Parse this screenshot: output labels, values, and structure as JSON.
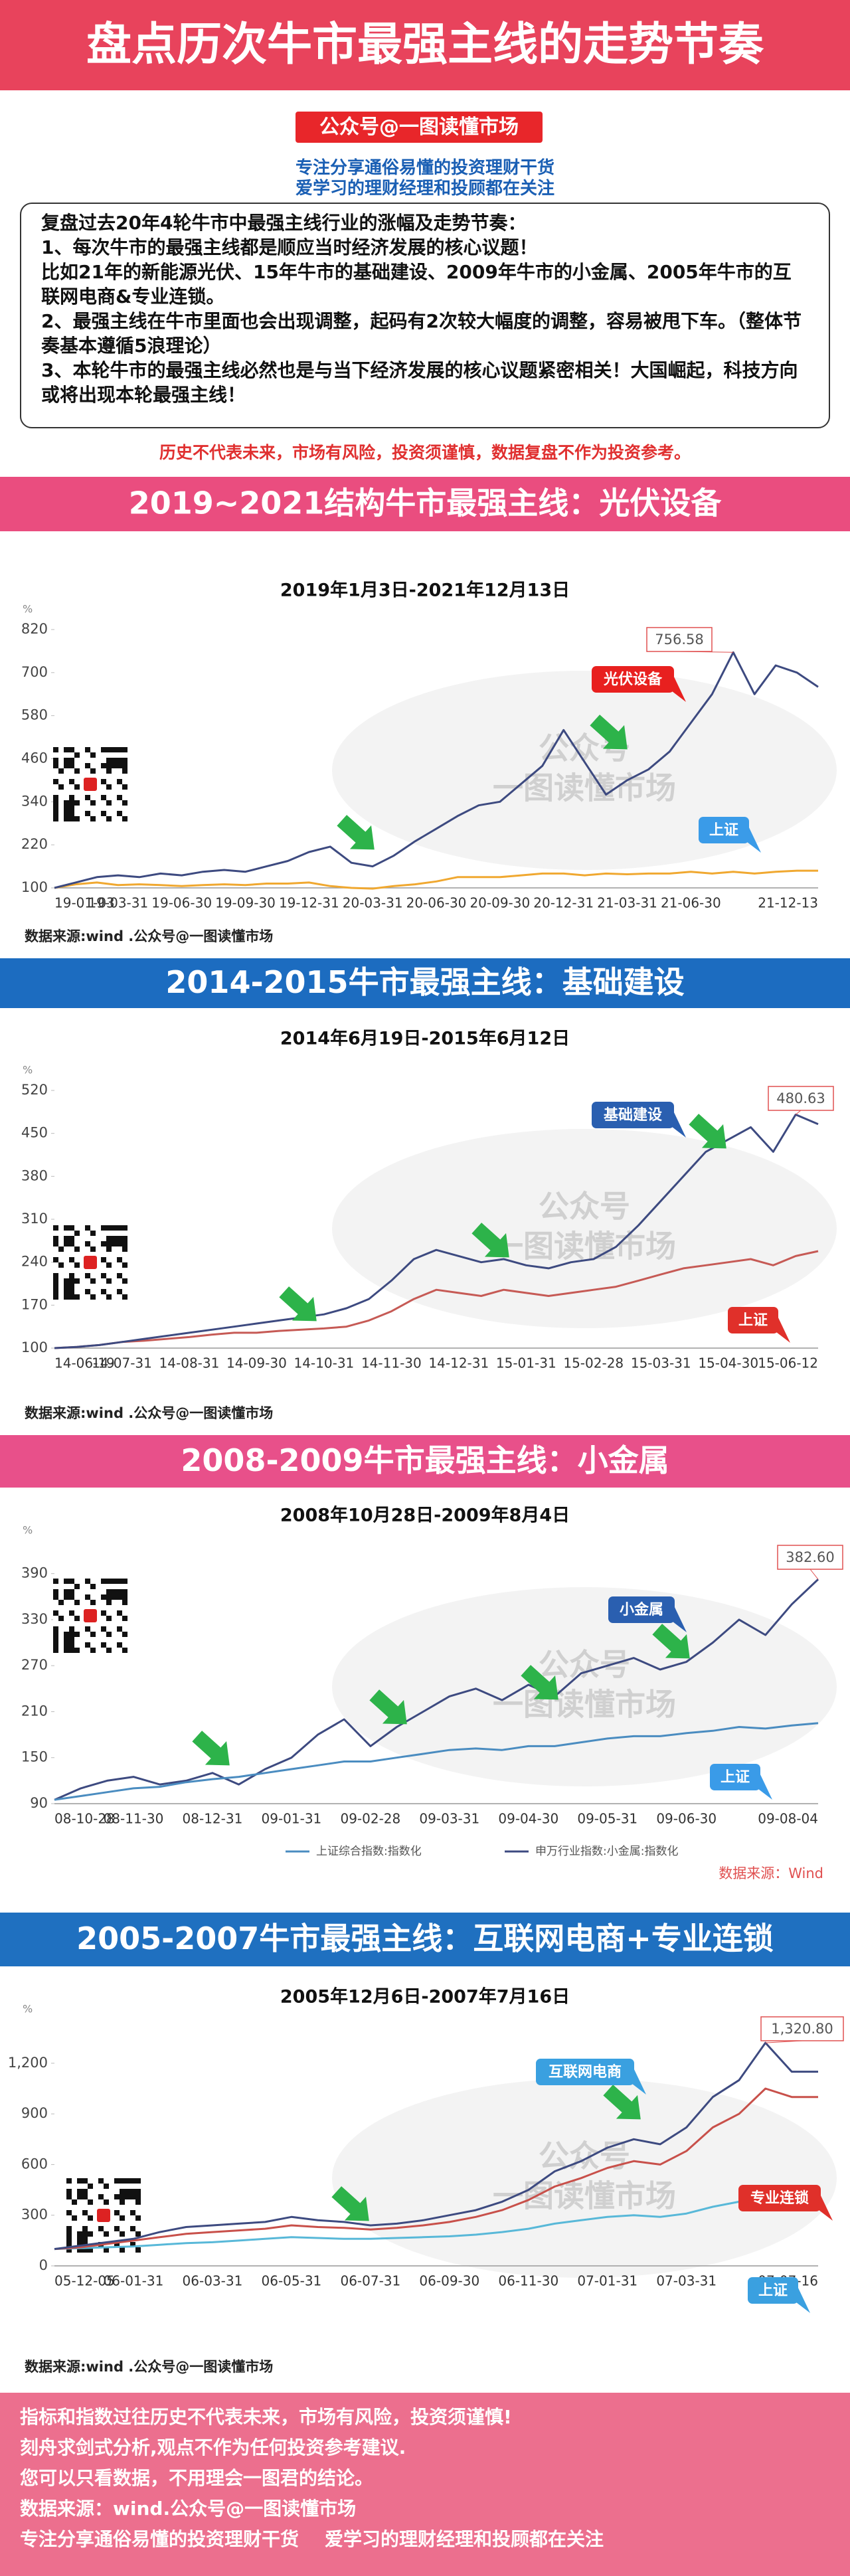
{
  "header": {
    "title": "盘点历次牛市最强主线的走势节奏",
    "account": "公众号@一图读懂市场",
    "taglines": [
      "专注分享通俗易懂的投资理财干货",
      "爱学习的理财经理和投顾都在关注"
    ]
  },
  "intro": {
    "lines": [
      "复盘过去20年4轮牛市中最强主线行业的涨幅及走势节奏：",
      "1、每次牛市的最强主线都是顺应当时经济发展的核心议题！",
      "比如21年的新能源光伏、15年牛市的基础建设、2009年牛市的小金属、2005年牛市的互联网电商&专业连锁。",
      "2、最强主线在牛市里面也会出现调整，起码有2次较大幅度的调整，容易被甩下车。（整体节奏基本遵循5浪理论）",
      "3、本轮牛市的最强主线必然也是与当下经济发展的核心议题紧密相关！大国崛起，科技方向或将出现本轮最强主线！"
    ]
  },
  "disclaimer": "历史不代表未来，市场有风险，投资须谨慎，数据复盘不作为投资参考。",
  "chart_data": [
    {
      "type": "line",
      "section": "2019~2021结构牛市最强主线：光伏设备",
      "band_color": "#ea4d7f",
      "title": "2019年1月3日-2021年12月13日",
      "y_unit": "%",
      "watermark": [
        "公众号",
        "一图读懂市场"
      ],
      "source": "数据来源:wind .公众号@一图读懂市场",
      "categories": [
        "19-01-03",
        null,
        null,
        "19-03-31",
        null,
        null,
        "19-06-30",
        null,
        null,
        "19-09-30",
        null,
        null,
        "19-12-31",
        null,
        null,
        "20-03-31",
        null,
        null,
        "20-06-30",
        null,
        null,
        "20-09-30",
        null,
        null,
        "20-12-31",
        null,
        null,
        "21-03-31",
        null,
        null,
        "21-06-30",
        null,
        null,
        null,
        null,
        null,
        "21-12-13"
      ],
      "ylim": [
        100,
        820
      ],
      "yticks": [
        100,
        220,
        340,
        460,
        580,
        700,
        820
      ],
      "grid": false,
      "legend": false,
      "series": [
        {
          "name": "光伏设备",
          "color": "#3d4a80",
          "callout_color": "#e8201f",
          "values": [
            100,
            115,
            130,
            135,
            130,
            140,
            135,
            145,
            150,
            145,
            160,
            175,
            200,
            215,
            170,
            160,
            190,
            230,
            265,
            300,
            330,
            340,
            390,
            440,
            540,
            450,
            360,
            400,
            430,
            480,
            560,
            640,
            756.58,
            640,
            720,
            700,
            660
          ]
        },
        {
          "name": "上证",
          "color": "#f0a830",
          "callout_color": "#3a9be8",
          "values": [
            100,
            110,
            115,
            108,
            110,
            108,
            105,
            108,
            110,
            108,
            112,
            112,
            115,
            105,
            100,
            98,
            105,
            110,
            118,
            130,
            130,
            130,
            135,
            140,
            140,
            135,
            140,
            138,
            140,
            140,
            145,
            140,
            145,
            140,
            145,
            148,
            148
          ]
        }
      ]
    },
    {
      "type": "line",
      "section": "2014-2015牛市最强主线：基础建设",
      "band_color": "#1c6cc0",
      "title": "2014年6月19日-2015年6月12日",
      "y_unit": "%",
      "watermark": [
        "公众号",
        "一图读懂市场"
      ],
      "source": "数据来源:wind .公众号@一图读懂市场",
      "categories": [
        "14-06-19",
        null,
        null,
        "14-07-31",
        null,
        null,
        "14-08-31",
        null,
        null,
        "14-09-30",
        null,
        null,
        "14-10-31",
        null,
        null,
        "14-11-30",
        null,
        null,
        "14-12-31",
        null,
        null,
        "15-01-31",
        null,
        null,
        "15-02-28",
        null,
        null,
        "15-03-31",
        null,
        null,
        "15-04-30",
        null,
        null,
        null,
        "15-06-12"
      ],
      "ylim": [
        100,
        520
      ],
      "yticks": [
        100,
        170,
        240,
        310,
        380,
        450,
        520
      ],
      "grid": false,
      "legend": false,
      "series": [
        {
          "name": "基础建设",
          "color": "#3d4a80",
          "callout_color": "#2a5fb0",
          "values": [
            100,
            102,
            105,
            110,
            115,
            120,
            125,
            130,
            135,
            140,
            145,
            150,
            155,
            165,
            180,
            210,
            245,
            260,
            250,
            240,
            245,
            235,
            230,
            240,
            245,
            265,
            300,
            340,
            380,
            420,
            440,
            460,
            420,
            480.63,
            465
          ]
        },
        {
          "name": "上证",
          "color": "#c65a55",
          "callout_color": "#e0302a",
          "values": [
            100,
            102,
            105,
            110,
            112,
            115,
            118,
            122,
            125,
            125,
            128,
            130,
            132,
            135,
            145,
            160,
            180,
            195,
            190,
            185,
            195,
            190,
            185,
            190,
            195,
            200,
            210,
            220,
            230,
            235,
            240,
            245,
            235,
            250,
            258
          ]
        }
      ]
    },
    {
      "type": "line",
      "section": "2008-2009牛市最强主线：小金属",
      "band_color": "#e8508a",
      "title": "2008年10月28日-2009年8月4日",
      "y_unit": "%",
      "watermark": [
        "公众号",
        "一图读懂市场"
      ],
      "source": "数据来源：Wind",
      "categories": [
        "08-10-28",
        null,
        null,
        "08-11-30",
        null,
        null,
        "08-12-31",
        null,
        null,
        "09-01-31",
        null,
        null,
        "09-02-28",
        null,
        null,
        "09-03-31",
        null,
        null,
        "09-04-30",
        null,
        null,
        "09-05-31",
        null,
        null,
        "09-06-30",
        null,
        null,
        null,
        null,
        "09-08-04"
      ],
      "ylim": [
        90,
        420
      ],
      "yticks": [
        90,
        150,
        210,
        270,
        330,
        390
      ],
      "grid": false,
      "legend": true,
      "series": [
        {
          "name": "上证综合指数:指数化",
          "callout": "上证",
          "color": "#4a8cc0",
          "callout_color": "#3a9be8",
          "values": [
            95,
            100,
            105,
            110,
            112,
            118,
            122,
            125,
            130,
            135,
            140,
            145,
            145,
            150,
            155,
            160,
            162,
            160,
            165,
            165,
            170,
            175,
            178,
            178,
            182,
            185,
            190,
            188,
            192,
            195
          ]
        },
        {
          "name": "申万行业指数:小金属:指数化",
          "callout": "小金属",
          "color": "#3d4a80",
          "callout_color": "#2a5fb0",
          "values": [
            95,
            110,
            120,
            125,
            115,
            120,
            130,
            115,
            135,
            150,
            180,
            200,
            165,
            190,
            210,
            230,
            240,
            225,
            245,
            230,
            260,
            270,
            280,
            265,
            275,
            300,
            330,
            310,
            350,
            382.6
          ],
          "value_labels": [
            null,
            null,
            null,
            null,
            null,
            null,
            null,
            null,
            null,
            null,
            null,
            null,
            null,
            null,
            null,
            null,
            null,
            null,
            null,
            null,
            null,
            null,
            null,
            null,
            null,
            null,
            null,
            null,
            null,
            "382.60"
          ]
        }
      ]
    },
    {
      "type": "line",
      "section": "2005-2007牛市最强主线：互联网电商+专业连锁",
      "band_color": "#1f70c0",
      "title": "2005年12月6日-2007年7月16日",
      "y_unit": "%",
      "watermark": [
        "公众号",
        "一图读懂市场"
      ],
      "source": "数据来源:wind .公众号@一图读懂市场",
      "categories": [
        "05-12-05",
        null,
        null,
        "06-01-31",
        null,
        null,
        "06-03-31",
        null,
        null,
        "06-05-31",
        null,
        null,
        "06-07-31",
        null,
        null,
        "06-09-30",
        null,
        null,
        "06-11-30",
        null,
        null,
        "07-01-31",
        null,
        null,
        "07-03-31",
        null,
        null,
        null,
        null,
        "07-07-16"
      ],
      "ylim": [
        0,
        1400
      ],
      "yticks": [
        0,
        300,
        600,
        900,
        {
          "value": 1200,
          "label": "1,200"
        }
      ],
      "grid": false,
      "legend": false,
      "series": [
        {
          "name": "互联网电商",
          "color": "#3d4a80",
          "callout_color": "#3aa0e0",
          "values": [
            100,
            120,
            140,
            160,
            200,
            230,
            240,
            250,
            260,
            290,
            270,
            260,
            240,
            250,
            270,
            300,
            330,
            380,
            450,
            560,
            620,
            700,
            750,
            720,
            820,
            1000,
            1100,
            1320.8,
            1150,
            1150
          ],
          "value_labels": [
            null,
            null,
            null,
            null,
            null,
            null,
            null,
            null,
            null,
            null,
            null,
            null,
            null,
            null,
            null,
            null,
            null,
            null,
            null,
            null,
            null,
            null,
            null,
            null,
            null,
            null,
            null,
            "1,320.80",
            null,
            null
          ]
        },
        {
          "name": "专业连锁",
          "color": "#c8504a",
          "callout_color": "#e0302a",
          "values": [
            100,
            110,
            130,
            150,
            170,
            190,
            200,
            210,
            220,
            240,
            230,
            225,
            215,
            225,
            240,
            260,
            290,
            330,
            390,
            470,
            520,
            580,
            620,
            600,
            680,
            820,
            900,
            1050,
            1000,
            1000
          ]
        },
        {
          "name": "上证",
          "color": "#58b8d8",
          "callout_color": "#3aa0e0",
          "values": [
            100,
            105,
            110,
            115,
            125,
            135,
            140,
            150,
            160,
            170,
            165,
            160,
            160,
            165,
            170,
            175,
            185,
            200,
            220,
            250,
            270,
            290,
            300,
            290,
            310,
            350,
            380,
            400,
            380,
            370
          ]
        }
      ]
    }
  ],
  "footer": {
    "lines": [
      "指标和指数过往历史不代表未来，市场有风险，投资须谨慎!",
      "刻舟求剑式分析,观点不作为任何投资参考建议.",
      "您可以只看数据，不用理会一图君的结论。",
      "数据来源：wind.公众号@一图读懂市场",
      "专注分享通俗易懂的投资理财干货    爱学习的理财经理和投顾都在关注"
    ]
  }
}
